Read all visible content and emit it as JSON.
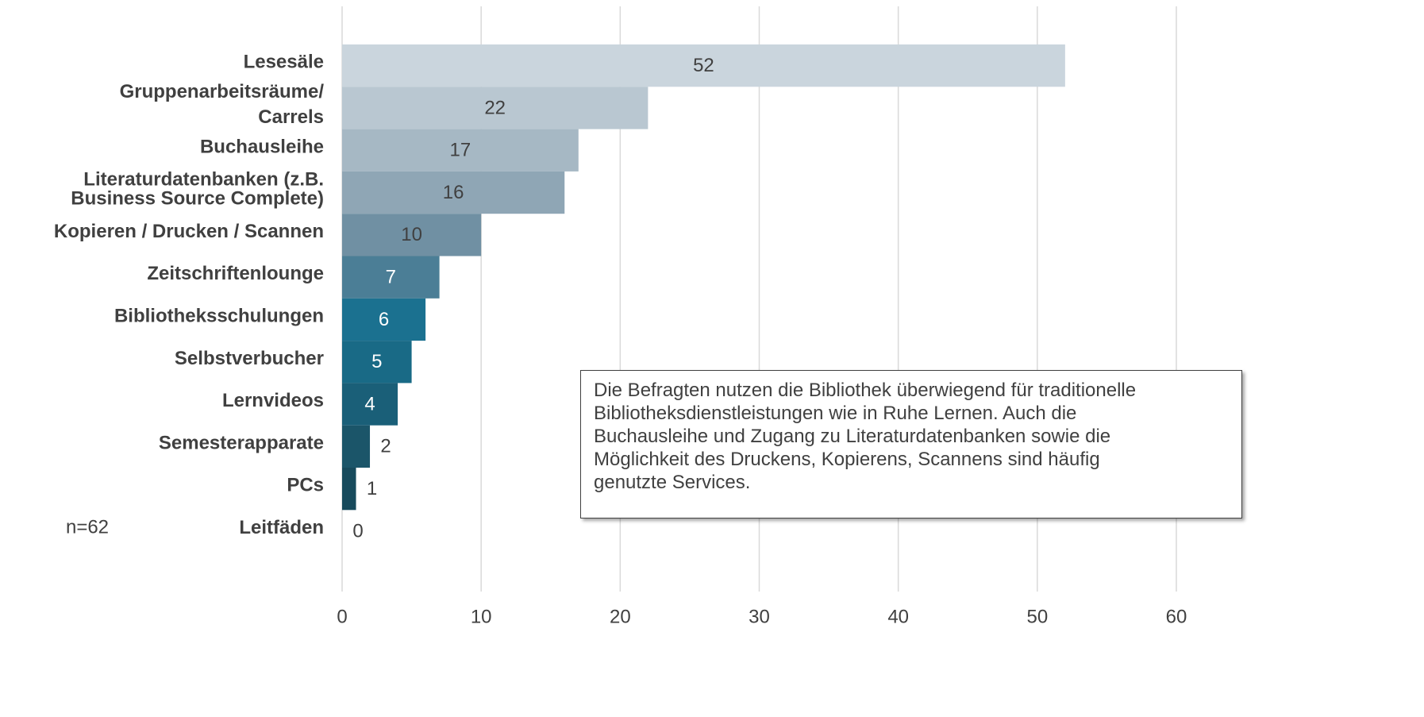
{
  "chart_data": {
    "type": "bar",
    "orientation": "horizontal",
    "categories": [
      "Lesesäle",
      "Gruppenarbeitsräume/\nCarrels",
      "Buchausleihe",
      "Literaturdatenbanken (z.B.\nBusiness Source Complete)",
      "Kopieren / Drucken / Scannen",
      "Zeitschriftenlounge",
      "Bibliotheksschulungen",
      "Selbstverbucher",
      "Lernvideos",
      "Semesterapparate",
      "PCs",
      "Leitfäden"
    ],
    "values": [
      52,
      22,
      17,
      16,
      10,
      7,
      6,
      5,
      4,
      2,
      1,
      0
    ],
    "colors": [
      "#cad5dd",
      "#b9c7d1",
      "#a6b8c4",
      "#8fa6b5",
      "#7090a3",
      "#4b7e96",
      "#1b7190",
      "#196a86",
      "#1a5f78",
      "#1b5569",
      "#174a5c",
      "#174a5c"
    ],
    "xlim": [
      0,
      60
    ],
    "xticks": [
      0,
      10,
      20,
      30,
      40,
      50,
      60
    ],
    "grid": true,
    "note": "n=62",
    "annotation": "Die Befragten nutzen die Bibliothek überwiegend für traditionelle\nBibliotheksdienstleistungen wie in Ruhe Lernen. Auch die\nBuchausleihe und Zugang zu Literaturdatenbanken sowie die\nMöglichkeit des Druckens, Kopierens, Scannens sind häufig\ngenutzte Services."
  }
}
